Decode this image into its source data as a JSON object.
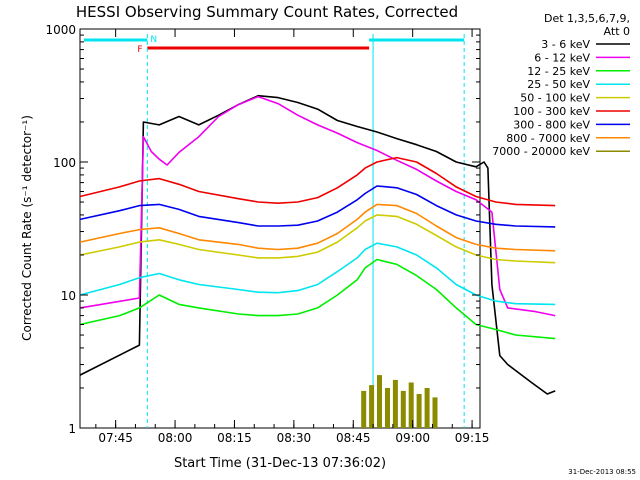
{
  "chart_data": {
    "type": "line",
    "title": "HESSI Observing Summary Count Rates, Corrected",
    "xlabel": "Start Time (31-Dec-13 07:36:02)",
    "ylabel": "Corrected Count Rate (s⁻¹ detector⁻¹)",
    "yscale": "log",
    "ylim": [
      1,
      1000
    ],
    "xlim": [
      "07:36",
      "09:17"
    ],
    "x_ticks": [
      "07:45",
      "08:00",
      "08:15",
      "08:30",
      "08:45",
      "09:00",
      "09:15"
    ],
    "y_ticks": [
      "1",
      "10",
      "100",
      "1000"
    ],
    "grid": false,
    "legend_position": "right",
    "legend_header": [
      "Det 1,3,5,6,7,9,",
      "Att 0"
    ],
    "footer_date": "31-Dec-2013 08:55",
    "state_bars": [
      {
        "name": "night",
        "color": "#00e5ee",
        "from": "07:37",
        "to": "07:53"
      },
      {
        "name": "flare",
        "label": "F",
        "color": "#ee0000",
        "from": "07:53",
        "to": "08:49"
      },
      {
        "name": "night",
        "color": "#00e5ee",
        "from": "08:49",
        "to": "09:13"
      }
    ],
    "markers": [
      {
        "label": "N",
        "color": "#00e5ee",
        "at": "07:53"
      }
    ],
    "boundary_lines": [
      "07:53",
      "08:50",
      "09:13"
    ],
    "series": [
      {
        "name": "3 - 6 keV",
        "color": "#000000",
        "values": [
          [
            0,
            2.5
          ],
          [
            15,
            4.2
          ],
          [
            16,
            200
          ],
          [
            20,
            190
          ],
          [
            25,
            220
          ],
          [
            30,
            190
          ],
          [
            35,
            225
          ],
          [
            40,
            270
          ],
          [
            45,
            315
          ],
          [
            50,
            305
          ],
          [
            55,
            280
          ],
          [
            60,
            250
          ],
          [
            65,
            205
          ],
          [
            70,
            185
          ],
          [
            75,
            168
          ],
          [
            80,
            150
          ],
          [
            85,
            135
          ],
          [
            90,
            120
          ],
          [
            95,
            100
          ],
          [
            100,
            92
          ],
          [
            102,
            100
          ],
          [
            103,
            90
          ],
          [
            104,
            12
          ],
          [
            106,
            3.5
          ],
          [
            108,
            3
          ],
          [
            114,
            2.2
          ],
          [
            118,
            1.8
          ],
          [
            120,
            1.9
          ]
        ]
      },
      {
        "name": "6 - 12 keV",
        "color": "#ee00ee",
        "values": [
          [
            0,
            8
          ],
          [
            15,
            9.5
          ],
          [
            16,
            155
          ],
          [
            18,
            120
          ],
          [
            20,
            105
          ],
          [
            22,
            95
          ],
          [
            25,
            118
          ],
          [
            30,
            155
          ],
          [
            35,
            220
          ],
          [
            40,
            270
          ],
          [
            45,
            310
          ],
          [
            50,
            275
          ],
          [
            55,
            225
          ],
          [
            60,
            190
          ],
          [
            65,
            165
          ],
          [
            70,
            140
          ],
          [
            75,
            122
          ],
          [
            80,
            103
          ],
          [
            85,
            88
          ],
          [
            90,
            72
          ],
          [
            95,
            60
          ],
          [
            100,
            52
          ],
          [
            104,
            42
          ],
          [
            106,
            11
          ],
          [
            108,
            8
          ],
          [
            115,
            7.5
          ],
          [
            120,
            7
          ]
        ]
      },
      {
        "name": "12 - 25 keV",
        "color": "#00ee00",
        "values": [
          [
            0,
            6
          ],
          [
            10,
            7
          ],
          [
            15,
            8
          ],
          [
            20,
            10
          ],
          [
            25,
            8.5
          ],
          [
            30,
            8
          ],
          [
            40,
            7.2
          ],
          [
            45,
            7
          ],
          [
            50,
            7
          ],
          [
            55,
            7.2
          ],
          [
            60,
            8
          ],
          [
            65,
            10
          ],
          [
            70,
            13
          ],
          [
            72,
            16
          ],
          [
            75,
            18.5
          ],
          [
            80,
            17
          ],
          [
            85,
            14
          ],
          [
            90,
            11
          ],
          [
            95,
            8
          ],
          [
            100,
            6
          ],
          [
            105,
            5.5
          ],
          [
            110,
            5
          ],
          [
            120,
            4.7
          ]
        ]
      },
      {
        "name": "25 - 50 keV",
        "color": "#00e5ee",
        "values": [
          [
            0,
            10
          ],
          [
            10,
            12
          ],
          [
            15,
            13.5
          ],
          [
            20,
            14.5
          ],
          [
            25,
            13
          ],
          [
            30,
            12
          ],
          [
            40,
            11
          ],
          [
            45,
            10.5
          ],
          [
            50,
            10.4
          ],
          [
            55,
            10.8
          ],
          [
            60,
            12
          ],
          [
            65,
            15
          ],
          [
            70,
            19
          ],
          [
            72,
            22
          ],
          [
            75,
            24.5
          ],
          [
            80,
            23
          ],
          [
            85,
            20
          ],
          [
            90,
            16
          ],
          [
            95,
            12
          ],
          [
            100,
            10
          ],
          [
            105,
            9
          ],
          [
            110,
            8.6
          ],
          [
            120,
            8.5
          ]
        ]
      },
      {
        "name": "50 - 100 keV",
        "color": "#cccc00",
        "values": [
          [
            0,
            20
          ],
          [
            10,
            23
          ],
          [
            15,
            25
          ],
          [
            20,
            26
          ],
          [
            25,
            24
          ],
          [
            30,
            22
          ],
          [
            40,
            20
          ],
          [
            45,
            19
          ],
          [
            50,
            19
          ],
          [
            55,
            19.5
          ],
          [
            60,
            21
          ],
          [
            65,
            25
          ],
          [
            70,
            32
          ],
          [
            72,
            36
          ],
          [
            75,
            40
          ],
          [
            80,
            39
          ],
          [
            85,
            34
          ],
          [
            90,
            28
          ],
          [
            95,
            23
          ],
          [
            100,
            20
          ],
          [
            105,
            18.5
          ],
          [
            110,
            18
          ],
          [
            120,
            17.5
          ]
        ]
      },
      {
        "name": "100 - 300 keV",
        "color": "#ee0000",
        "values": [
          [
            0,
            55
          ],
          [
            10,
            65
          ],
          [
            15,
            72
          ],
          [
            20,
            75
          ],
          [
            25,
            68
          ],
          [
            30,
            60
          ],
          [
            40,
            53
          ],
          [
            45,
            50
          ],
          [
            50,
            49
          ],
          [
            55,
            50
          ],
          [
            60,
            54
          ],
          [
            65,
            64
          ],
          [
            70,
            80
          ],
          [
            72,
            90
          ],
          [
            75,
            100
          ],
          [
            80,
            108
          ],
          [
            85,
            100
          ],
          [
            90,
            82
          ],
          [
            95,
            65
          ],
          [
            100,
            55
          ],
          [
            105,
            50
          ],
          [
            110,
            48
          ],
          [
            120,
            47
          ]
        ]
      },
      {
        "name": "300 - 800 keV",
        "color": "#0000ee",
        "values": [
          [
            0,
            37
          ],
          [
            10,
            43
          ],
          [
            15,
            47
          ],
          [
            20,
            48
          ],
          [
            25,
            44
          ],
          [
            30,
            39
          ],
          [
            40,
            35
          ],
          [
            45,
            33
          ],
          [
            50,
            33
          ],
          [
            55,
            33.5
          ],
          [
            60,
            36
          ],
          [
            65,
            42
          ],
          [
            70,
            52
          ],
          [
            72,
            58
          ],
          [
            75,
            66
          ],
          [
            80,
            64
          ],
          [
            85,
            57
          ],
          [
            90,
            47
          ],
          [
            95,
            40
          ],
          [
            100,
            36
          ],
          [
            105,
            34
          ],
          [
            110,
            33
          ],
          [
            120,
            32.5
          ]
        ]
      },
      {
        "name": "800 - 7000 keV",
        "color": "#ff8800",
        "values": [
          [
            0,
            25
          ],
          [
            10,
            29
          ],
          [
            15,
            31
          ],
          [
            20,
            32
          ],
          [
            25,
            29
          ],
          [
            30,
            26
          ],
          [
            40,
            24
          ],
          [
            45,
            22.5
          ],
          [
            50,
            22
          ],
          [
            55,
            22.5
          ],
          [
            60,
            24.5
          ],
          [
            65,
            29
          ],
          [
            70,
            37
          ],
          [
            72,
            42
          ],
          [
            75,
            48
          ],
          [
            80,
            47
          ],
          [
            85,
            41
          ],
          [
            90,
            33
          ],
          [
            95,
            27
          ],
          [
            100,
            24
          ],
          [
            105,
            22.5
          ],
          [
            110,
            22
          ],
          [
            120,
            21.5
          ]
        ]
      },
      {
        "name": "7000 - 20000 keV",
        "color": "#8b8b00",
        "values": []
      }
    ]
  }
}
